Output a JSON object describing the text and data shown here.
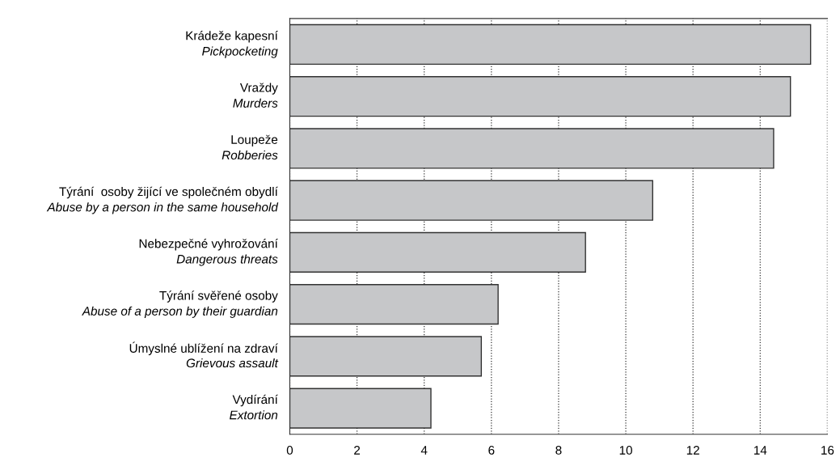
{
  "chart_data": {
    "type": "bar",
    "orientation": "horizontal",
    "categories": [
      "Krádeže kapesní\nPickpocketing",
      "Vraždy\nMurders",
      "Loupeže\nRobberies",
      "Týrání  osoby žijící ve společném obydlí\nAbuse by a person in the same household",
      "Nebezpečné vyhrožování\nDangerous threats",
      "Týrání svěřené osoby\nAbuse of a person by their guardian",
      "Úmyslné ublížení na zdraví\nGrievous assault",
      "Vydírání\nExtortion"
    ],
    "values": [
      15.5,
      14.9,
      14.4,
      10.8,
      8.8,
      6.2,
      5.7,
      4.2
    ],
    "color": "#c6c7c9",
    "xlim": [
      0,
      16
    ],
    "xticks": [
      0,
      2,
      4,
      6,
      8,
      10,
      12,
      14,
      16
    ],
    "grid": "x",
    "line_style": "dotted"
  }
}
